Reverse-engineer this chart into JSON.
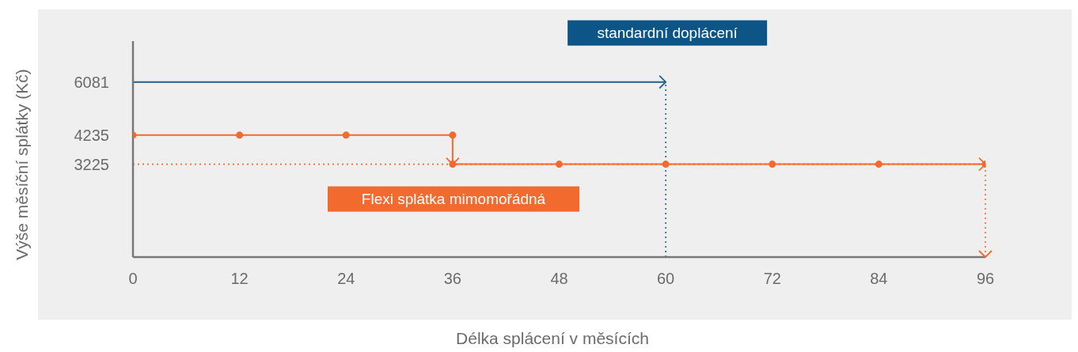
{
  "chart_data": {
    "type": "line",
    "xlabel": "Délka splácení v měsících",
    "ylabel": "Výše měsíční splátky (Kč)",
    "xlim": [
      0,
      96
    ],
    "xticks": [
      0,
      12,
      24,
      36,
      48,
      60,
      72,
      84,
      96
    ],
    "ylim": [
      0,
      7500
    ],
    "yticks": [
      3225,
      4235,
      6081
    ],
    "series": [
      {
        "name": "standardní doplácení",
        "color": "#1f5f8b",
        "x": [
          0,
          60
        ],
        "values": [
          6081,
          6081
        ]
      },
      {
        "name": "Flexi splátka mimomořádná",
        "color": "#f26a2e",
        "marker": "circle",
        "x": [
          0,
          12,
          24,
          36,
          36,
          48,
          60,
          72,
          84,
          96
        ],
        "values": [
          4235,
          4235,
          4235,
          4235,
          3225,
          3225,
          3225,
          3225,
          3225,
          3225
        ]
      }
    ],
    "ref_lines": [
      {
        "axis": "x",
        "value": 60,
        "color": "#1f5f8b",
        "line_style": "dotted"
      },
      {
        "axis": "x",
        "value": 96,
        "color": "#f26a2e",
        "line_style": "dotted"
      },
      {
        "axis": "y",
        "value": 3225,
        "color": "#f26a2e",
        "line_style": "dotted"
      }
    ]
  }
}
